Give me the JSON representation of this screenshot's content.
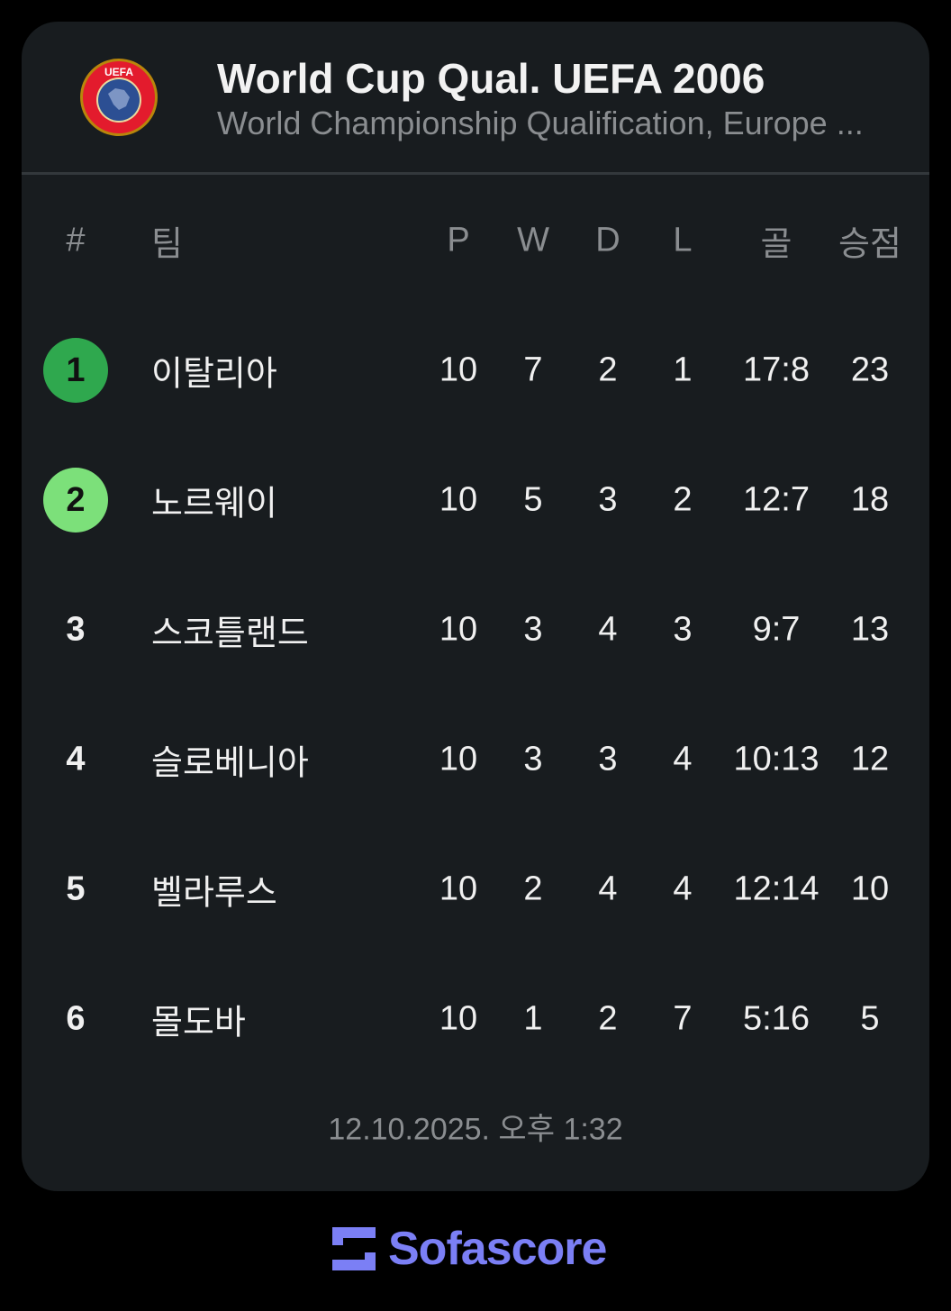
{
  "header": {
    "title": "World Cup Qual. UEFA 2006",
    "subtitle": "World Championship Qualification, Europe ...",
    "logo_text": "UEFA"
  },
  "columns": [
    "#",
    "팀",
    "P",
    "W",
    "D",
    "L",
    "골",
    "승점"
  ],
  "rows": [
    {
      "rank": "1",
      "team": "이탈리아",
      "p": "10",
      "w": "7",
      "d": "2",
      "l": "1",
      "goals": "17:8",
      "pts": "23",
      "badge": "#2fa84e"
    },
    {
      "rank": "2",
      "team": "노르웨이",
      "p": "10",
      "w": "5",
      "d": "3",
      "l": "2",
      "goals": "12:7",
      "pts": "18",
      "badge": "#7ce07a"
    },
    {
      "rank": "3",
      "team": "스코틀랜드",
      "p": "10",
      "w": "3",
      "d": "4",
      "l": "3",
      "goals": "9:7",
      "pts": "13"
    },
    {
      "rank": "4",
      "team": "슬로베니아",
      "p": "10",
      "w": "3",
      "d": "3",
      "l": "4",
      "goals": "10:13",
      "pts": "12"
    },
    {
      "rank": "5",
      "team": "벨라루스",
      "p": "10",
      "w": "2",
      "d": "4",
      "l": "4",
      "goals": "12:14",
      "pts": "10"
    },
    {
      "rank": "6",
      "team": "몰도바",
      "p": "10",
      "w": "1",
      "d": "2",
      "l": "7",
      "goals": "5:16",
      "pts": "5"
    }
  ],
  "footer": {
    "timestamp": "12.10.2025. 오후 1:32"
  },
  "brand": {
    "name": "Sofascore",
    "color": "#7b7ff5"
  }
}
